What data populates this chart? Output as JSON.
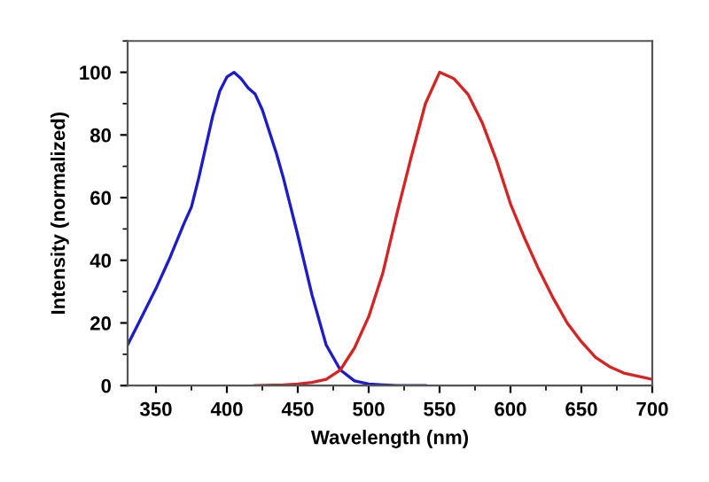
{
  "chart_data": {
    "type": "line",
    "xlabel": "Wavelength (nm)",
    "ylabel": "Intensity (normalized)",
    "xlim": [
      330,
      700
    ],
    "ylim": [
      0,
      110
    ],
    "xticks": [
      350,
      400,
      450,
      500,
      550,
      600,
      650,
      700
    ],
    "yticks": [
      0,
      20,
      40,
      60,
      80,
      100
    ],
    "grid": false,
    "legend": false,
    "marker": "none",
    "line_style": "solid",
    "series": [
      {
        "color": "#1c1cc8",
        "x": [
          330,
          340,
          350,
          360,
          370,
          375,
          380,
          390,
          395,
          400,
          405,
          410,
          415,
          420,
          425,
          430,
          435,
          440,
          450,
          460,
          470,
          480,
          490,
          500,
          510,
          520,
          540
        ],
        "values": [
          13,
          22,
          31,
          41,
          52,
          57,
          66,
          86,
          94,
          98.5,
          100,
          98,
          95,
          93,
          88,
          81,
          74,
          66,
          48,
          29,
          13,
          5,
          1.5,
          0.5,
          0.2,
          0,
          0
        ]
      },
      {
        "color": "#d42424",
        "x": [
          420,
          440,
          450,
          460,
          470,
          480,
          490,
          500,
          510,
          520,
          530,
          540,
          550,
          560,
          570,
          580,
          590,
          600,
          610,
          620,
          630,
          640,
          650,
          660,
          670,
          680,
          690,
          700
        ],
        "values": [
          0,
          0.2,
          0.5,
          1,
          2,
          5,
          12,
          22,
          36,
          55,
          73,
          90,
          100,
          98,
          93,
          84,
          72,
          58,
          47,
          37,
          28,
          20,
          14,
          9,
          6,
          4,
          3,
          2
        ]
      }
    ]
  }
}
